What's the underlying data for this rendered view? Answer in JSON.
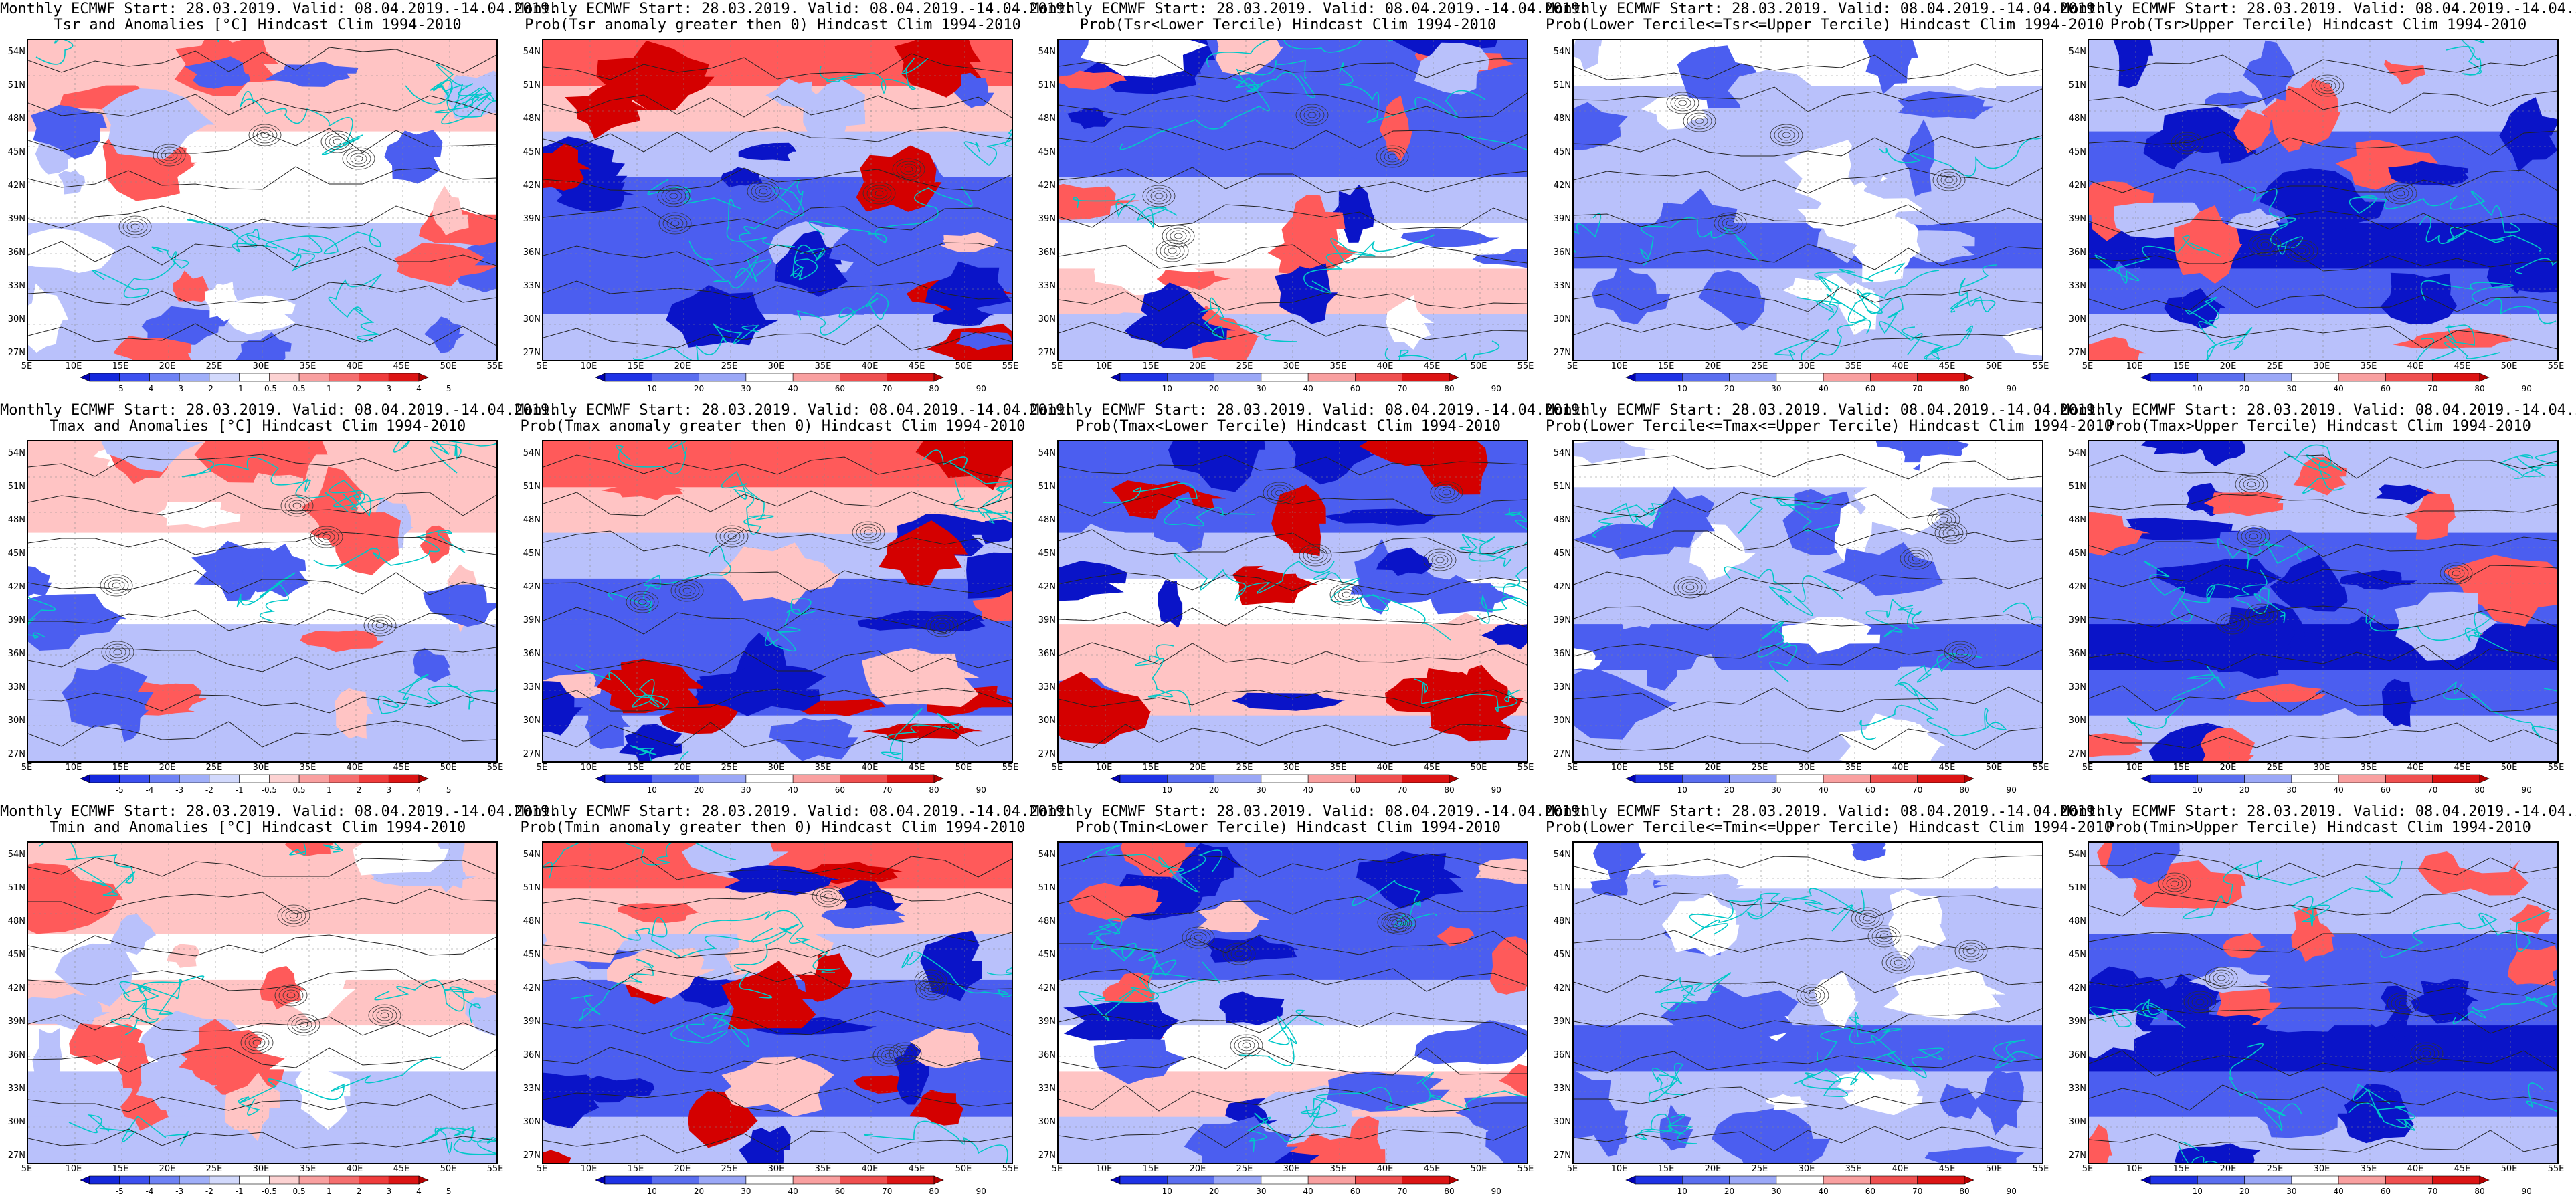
{
  "common": {
    "line1": "Monthly ECMWF Start: 28.03.2019. Valid: 08.04.2019.-14.04.2019.",
    "lat_labels": [
      "54N",
      "51N",
      "48N",
      "45N",
      "42N",
      "39N",
      "36N",
      "33N",
      "30N",
      "27N"
    ],
    "lon_labels": [
      "5E",
      "10E",
      "15E",
      "20E",
      "25E",
      "30E",
      "35E",
      "40E",
      "45E",
      "50E",
      "55E"
    ]
  },
  "colors": {
    "blue_dark": "#0a14c8",
    "blue_mid": "#4b5ef0",
    "blue_light": "#b9c1fb",
    "red_dark": "#d40000",
    "red_mid": "#ff5a5a",
    "red_light": "#ffc4c4",
    "contour_cyan": "#00c8c8"
  },
  "colorbars": {
    "anom": {
      "labels": [
        "-5",
        "-4",
        "-3",
        "-2",
        "-1",
        "-0.5",
        "0.5",
        "1",
        "2",
        "3",
        "4",
        "5"
      ],
      "colors": [
        "#0000b4",
        "#1428dc",
        "#3c50f0",
        "#6e82f5",
        "#a0aff9",
        "#d2d9fc",
        "#ffffff",
        "#fcd2d2",
        "#f9a0a0",
        "#f56e6e",
        "#f03c3c",
        "#dc1414",
        "#b40000"
      ]
    },
    "prob": {
      "labels": [
        "10",
        "20",
        "30",
        "40",
        "60",
        "70",
        "80",
        "90"
      ],
      "colors": [
        "#0000b4",
        "#1e32e6",
        "#5a6ef0",
        "#9ba8f7",
        "#ffffff",
        "#f9a0a0",
        "#f05050",
        "#dc1414",
        "#b40000"
      ]
    }
  },
  "panels": [
    {
      "line2": "Tsr and Anomalies [°C] Hindcast Clim 1994-2010",
      "cbar": "anom",
      "pattern": "anom"
    },
    {
      "line2": "Prob(Tsr anomaly greater then 0) Hindcast Clim 1994-2010",
      "cbar": "prob",
      "pattern": "prob_gt0"
    },
    {
      "line2": "Prob(Tsr<Lower Tercile) Hindcast Clim 1994-2010",
      "cbar": "prob",
      "pattern": "prob_lower"
    },
    {
      "line2": "Prob(Lower Tercile<=Tsr<=Upper Tercile) Hindcast Clim 1994-2010",
      "cbar": "prob",
      "pattern": "prob_mid"
    },
    {
      "line2": "Prob(Tsr>Upper Tercile) Hindcast Clim 1994-2010",
      "cbar": "prob",
      "pattern": "prob_upper"
    },
    {
      "line2": "Tmax and Anomalies [°C] Hindcast Clim 1994-2010",
      "cbar": "anom",
      "pattern": "anom"
    },
    {
      "line2": "Prob(Tmax anomaly greater then 0) Hindcast Clim 1994-2010",
      "cbar": "prob",
      "pattern": "prob_gt0"
    },
    {
      "line2": "Prob(Tmax<Lower Tercile) Hindcast Clim 1994-2010",
      "cbar": "prob",
      "pattern": "prob_lower2"
    },
    {
      "line2": "Prob(Lower Tercile<=Tmax<=Upper Tercile) Hindcast Clim 1994-2010",
      "cbar": "prob",
      "pattern": "prob_mid"
    },
    {
      "line2": "Prob(Tmax>Upper Tercile) Hindcast Clim 1994-2010",
      "cbar": "prob",
      "pattern": "prob_upper"
    },
    {
      "line2": "Tmin and Anomalies [°C] Hindcast Clim 1994-2010",
      "cbar": "anom",
      "pattern": "anom_tmin"
    },
    {
      "line2": "Prob(Tmin anomaly greater then 0) Hindcast Clim 1994-2010",
      "cbar": "prob",
      "pattern": "prob_gt0"
    },
    {
      "line2": "Prob(Tmin<Lower Tercile) Hindcast Clim 1994-2010",
      "cbar": "prob",
      "pattern": "prob_lower"
    },
    {
      "line2": "Prob(Lower Tercile<=Tmin<=Upper Tercile) Hindcast Clim 1994-2010",
      "cbar": "prob",
      "pattern": "prob_mid"
    },
    {
      "line2": "Prob(Tmin>Upper Tercile) Hindcast Clim 1994-2010",
      "cbar": "prob",
      "pattern": "prob_upper"
    }
  ]
}
